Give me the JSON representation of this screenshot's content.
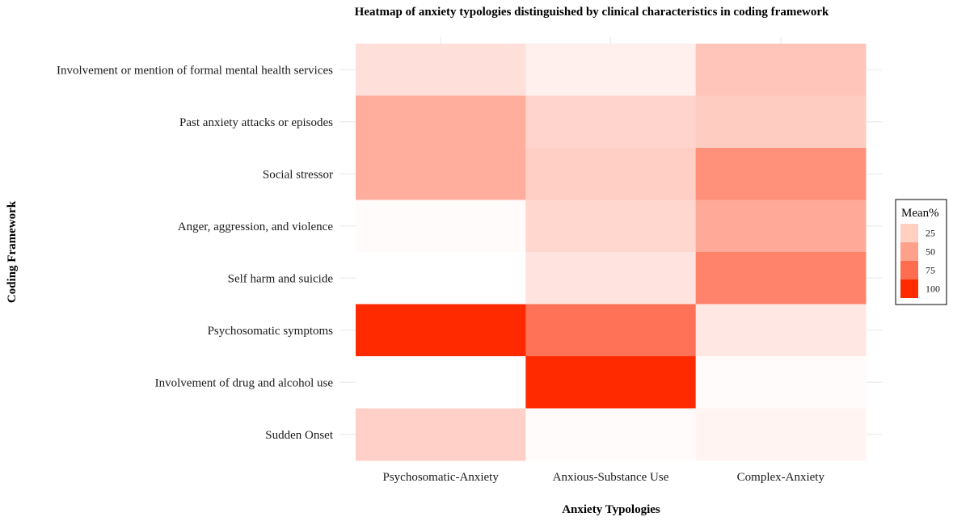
{
  "chart_data": {
    "type": "heatmap",
    "title": "Heatmap of anxiety typologies distinguished by clinical characteristics in coding framework",
    "xlabel": "Anxiety Typologies",
    "ylabel": "Coding Framework",
    "x_categories": [
      "Psychosomatic-Anxiety",
      "Anxious-Substance Use",
      "Complex-Anxiety"
    ],
    "y_categories": [
      "Involvement or mention of formal mental health services",
      "Past anxiety attacks or episodes",
      "Social stressor",
      "Anger, aggression, and violence",
      "Self harm and suicide",
      "Psychosomatic symptoms",
      "Involvement of drug and alcohol use",
      "Sudden Onset"
    ],
    "values": [
      [
        15,
        7,
        27
      ],
      [
        38,
        20,
        24
      ],
      [
        38,
        23,
        52
      ],
      [
        2,
        19,
        40
      ],
      [
        0,
        13,
        58
      ],
      [
        100,
        66,
        11
      ],
      [
        0,
        100,
        2
      ],
      [
        22,
        2,
        5
      ]
    ],
    "color_scale": {
      "low": "#ffffff",
      "high": "#ff2a00",
      "min": 0,
      "max": 100
    },
    "legend": {
      "title": "Mean%",
      "position": "right",
      "breaks": [
        25,
        50,
        75,
        100
      ],
      "break_colors": [
        "#ffcfc2",
        "#ffa18a",
        "#ff6d50",
        "#ff2a00"
      ]
    },
    "grid": true
  }
}
